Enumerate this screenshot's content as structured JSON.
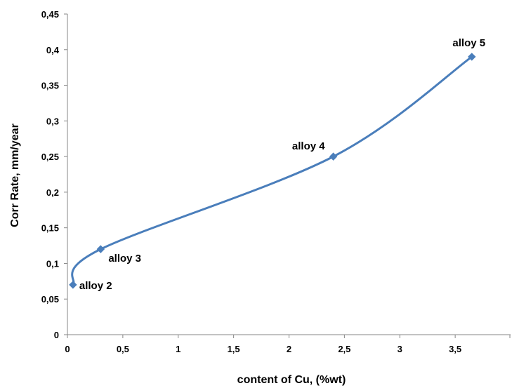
{
  "chart_data": {
    "type": "line",
    "title": "",
    "xlabel": "content of Cu, (%wt)",
    "ylabel": "Corr Rate, mm/year",
    "xlim": [
      0,
      4
    ],
    "ylim": [
      0,
      0.45
    ],
    "grid": false,
    "smooth": true,
    "x_ticks": [
      0,
      0.5,
      1,
      1.5,
      2,
      2.5,
      3,
      3.5
    ],
    "x_tick_labels": [
      "0",
      "0,5",
      "1",
      "1,5",
      "2",
      "2,5",
      "3",
      "3,5"
    ],
    "y_ticks": [
      0,
      0.05,
      0.1,
      0.15,
      0.2,
      0.25,
      0.3,
      0.35,
      0.4,
      0.45
    ],
    "y_tick_labels": [
      "0",
      "0,05",
      "0,1",
      "0,15",
      "0,2",
      "0,25",
      "0,3",
      "0,35",
      "0,4",
      "0,45"
    ],
    "series": [
      {
        "color": "#4a7ebb",
        "x": [
          0.05,
          0.3,
          2.4,
          3.65
        ],
        "y": [
          0.07,
          0.12,
          0.25,
          0.39
        ],
        "labels": [
          "alloy 2",
          "alloy 3",
          "alloy 4",
          "alloy 5"
        ]
      }
    ]
  }
}
